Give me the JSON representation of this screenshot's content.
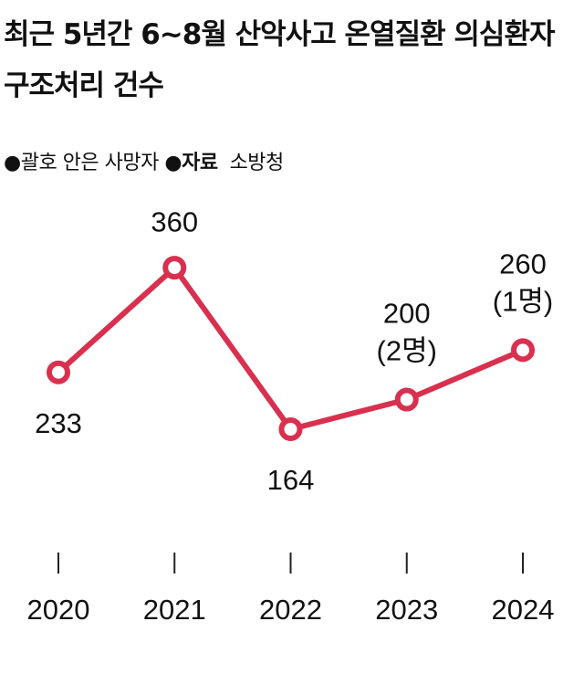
{
  "chart_data": {
    "type": "line",
    "title": "최근 5년간 6~8월 산악사고 온열질환 의심환자 구조처리 건수",
    "note": "괄호 안은 사망자",
    "source_label": "자료",
    "source": "소방청",
    "categories": [
      "2020",
      "2021",
      "2022",
      "2023",
      "2024"
    ],
    "values": [
      233,
      360,
      164,
      200,
      260
    ],
    "color": "#d8304e",
    "ylim": [
      0,
      400
    ],
    "annotations": [
      {
        "x": "2023",
        "value": 2,
        "label": "(2명)"
      },
      {
        "x": "2024",
        "value": 1,
        "label": "(1명)"
      }
    ]
  }
}
